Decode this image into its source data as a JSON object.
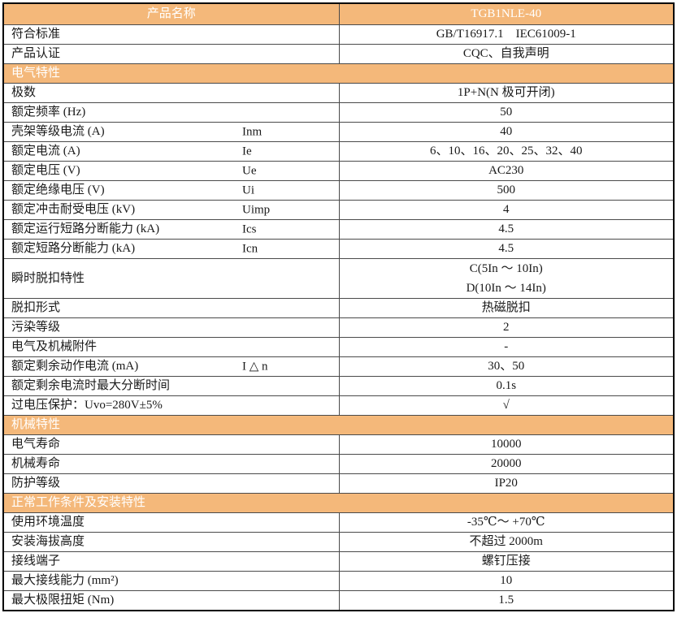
{
  "page": {
    "background": "#ffffff"
  },
  "colors": {
    "accent_orange": "#F4B87A",
    "header_text": "#FFFFFF",
    "body_text": "#1a1a1a",
    "border_inner": "#4a4a4a",
    "border_outer": "#000000"
  },
  "table": {
    "rows": [
      {
        "type": "header",
        "label": "产品名称",
        "value": "TGB1NLE-40"
      },
      {
        "type": "data",
        "label": "符合标准",
        "value": "GB/T16917.1    IEC61009-1"
      },
      {
        "type": "data",
        "label": "产品认证",
        "value": "CQC、自我声明"
      },
      {
        "type": "section",
        "label": "电气特性"
      },
      {
        "type": "data",
        "label": "极数",
        "value": "1P+N(N 极可开闭)"
      },
      {
        "type": "data",
        "label": "额定频率 (Hz)",
        "value": "50"
      },
      {
        "type": "data",
        "label": "壳架等级电流 (A)",
        "symbol": "Inm",
        "value": "40"
      },
      {
        "type": "data",
        "label": "额定电流 (A)",
        "symbol": "Ie",
        "value": "6、10、16、20、25、32、40"
      },
      {
        "type": "data",
        "label": "额定电压 (V)",
        "symbol": "Ue",
        "value": "AC230"
      },
      {
        "type": "data",
        "label": "额定绝缘电压 (V)",
        "symbol": "Ui",
        "value": "500"
      },
      {
        "type": "data",
        "label": "额定冲击耐受电压 (kV)",
        "symbol": "Uimp",
        "value": "4"
      },
      {
        "type": "data",
        "label": "额定运行短路分断能力 (kA)",
        "symbol": "Ics",
        "value": "4.5"
      },
      {
        "type": "data",
        "label": "额定短路分断能力 (kA)",
        "symbol": "Icn",
        "value": "4.5"
      },
      {
        "type": "data",
        "label": "瞬时脱扣特性",
        "tall": true,
        "value_lines": [
          "C(5In ～ 10In)",
          "D(10In ～ 14In)"
        ]
      },
      {
        "type": "data",
        "label": "脱扣形式",
        "value": "热磁脱扣"
      },
      {
        "type": "data",
        "label": "污染等级",
        "value": "2"
      },
      {
        "type": "data",
        "label": "电气及机械附件",
        "value": "-"
      },
      {
        "type": "data",
        "label": "额定剩余动作电流 (mA)",
        "symbol": "I △ n",
        "value": "30、50"
      },
      {
        "type": "data",
        "label": "额定剩余电流时最大分断时间",
        "value": "0.1s"
      },
      {
        "type": "data",
        "label": "过电压保护：Uvo=280V±5%",
        "value": "√"
      },
      {
        "type": "section",
        "label": "机械特性"
      },
      {
        "type": "data",
        "label": "电气寿命",
        "value": "10000"
      },
      {
        "type": "data",
        "label": "机械寿命",
        "value": "20000"
      },
      {
        "type": "data",
        "label": "防护等级",
        "value": "IP20"
      },
      {
        "type": "section",
        "label": "正常工作条件及安装特性"
      },
      {
        "type": "data",
        "label": "使用环境温度",
        "value": "-35℃～ +70℃"
      },
      {
        "type": "data",
        "label": "安装海拔高度",
        "value": "不超过 2000m"
      },
      {
        "type": "data",
        "label": "接线端子",
        "value": "螺钉压接"
      },
      {
        "type": "data",
        "label": "最大接线能力 (mm²)",
        "value": "10"
      },
      {
        "type": "data",
        "label": "最大极限扭矩 (Nm)",
        "value": "1.5"
      }
    ]
  }
}
